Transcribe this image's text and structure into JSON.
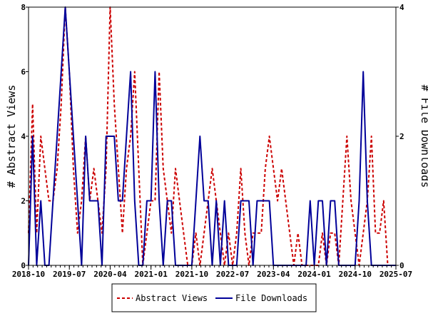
{
  "chart_data": {
    "type": "line",
    "title": "",
    "ylabel_left": "# Abstract Views",
    "ylabel_right": "# File Downloads",
    "ylim_left": [
      0,
      8
    ],
    "ylim_right": [
      0,
      4
    ],
    "y_ticks_left": [
      "0",
      "2",
      "4",
      "6",
      "8"
    ],
    "y_ticks_right": [
      "0",
      "2",
      "4"
    ],
    "x_tick_labels": [
      "2018-10",
      "2019-07",
      "2020-04",
      "2021-01",
      "2021-10",
      "2022-07",
      "2023-04",
      "2024-01",
      "2024-10",
      "2025-07"
    ],
    "x_start": "2018-10",
    "x_end": "2025-07",
    "legend_position": "bottom-center",
    "grid": false,
    "series": [
      {
        "name": "Abstract Views",
        "axis": "left",
        "color": "#cc0000",
        "style": "dashed",
        "values": [
          1,
          5,
          1,
          4,
          3,
          2,
          2,
          3,
          5,
          8,
          6,
          3,
          1,
          2,
          4,
          2,
          3,
          2,
          1,
          3,
          8,
          5,
          3,
          1,
          3,
          4,
          6,
          3,
          0,
          1,
          2,
          2,
          6,
          3,
          2,
          1,
          3,
          2,
          1,
          0,
          0,
          1,
          0,
          1,
          2,
          3,
          2,
          1,
          0,
          1,
          0,
          1,
          3,
          1,
          0,
          1,
          1,
          1,
          3,
          4,
          3,
          2,
          3,
          2,
          1,
          0,
          1,
          0,
          0,
          0,
          0,
          0,
          1,
          0,
          1,
          1,
          0,
          2,
          4,
          2,
          1,
          0,
          1,
          2,
          4,
          1,
          1,
          2,
          0,
          0,
          0
        ]
      },
      {
        "name": "File Downloads",
        "axis": "right",
        "color": "#000099",
        "style": "solid",
        "values": [
          0,
          2,
          0,
          1,
          0,
          0,
          1,
          2,
          3,
          4,
          3,
          2,
          1,
          0,
          2,
          1,
          1,
          1,
          0,
          2,
          2,
          2,
          1,
          1,
          2,
          3,
          1,
          0,
          0,
          1,
          1,
          3,
          1,
          0,
          1,
          1,
          0,
          0,
          0,
          0,
          0,
          1,
          2,
          1,
          1,
          0,
          1,
          0,
          1,
          0,
          0,
          0,
          1,
          1,
          1,
          0,
          1,
          1,
          1,
          1,
          0,
          0,
          0,
          0,
          0,
          0,
          0,
          0,
          0,
          1,
          0,
          1,
          1,
          0,
          1,
          1,
          0,
          0,
          0,
          0,
          0,
          1,
          3,
          1,
          0,
          0,
          0,
          0,
          0,
          0,
          0
        ]
      }
    ]
  }
}
